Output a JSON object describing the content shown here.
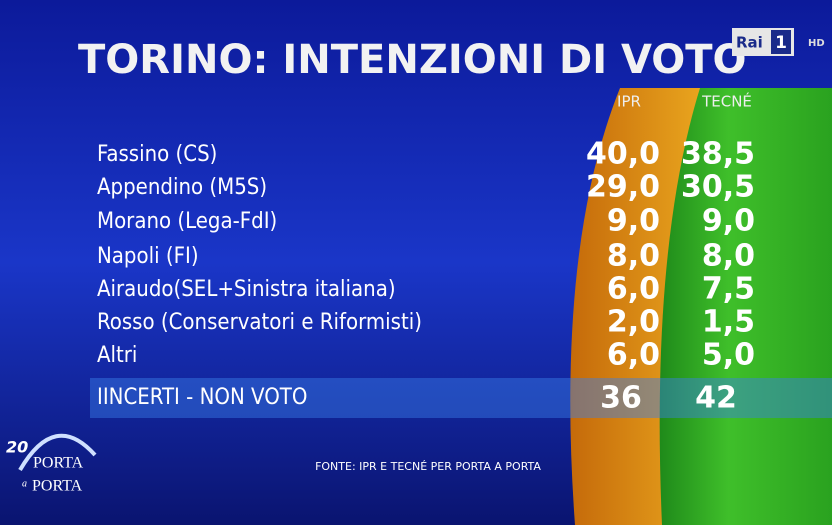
{
  "header": {
    "title": "TORINO: INTENZIONI DI VOTO",
    "logo": "Rai",
    "channel": "1",
    "hd": "HD"
  },
  "table": {
    "columns": [
      "IPR",
      "TECNÉ"
    ],
    "rows": [
      [
        "Fassino (CS)",
        "40,0",
        "38,5"
      ],
      [
        "Appendino (M5S)",
        "29,0",
        "30,5"
      ],
      [
        "Morano (Lega-FdI)",
        "9,0",
        "9,0"
      ],
      [
        "Napoli (FI)",
        "8,0",
        "8,0"
      ],
      [
        "Airaudo(SEL+Sinistra italiana)",
        "6,0",
        "7,5"
      ],
      [
        "Rosso (Conservatori e Riformisti)",
        "2,0",
        "1,5"
      ],
      [
        "Altri",
        "6,0",
        "5,0"
      ]
    ],
    "undecided": [
      "IINCERTI - NON VOTO",
      "36",
      "42"
    ]
  },
  "footer": {
    "source": "FONTE: IPR E TECNÉ PER PORTA A PORTA"
  },
  "show": {
    "anniversary": "20",
    "name": [
      "PORTA",
      "a",
      "PORTA"
    ]
  }
}
